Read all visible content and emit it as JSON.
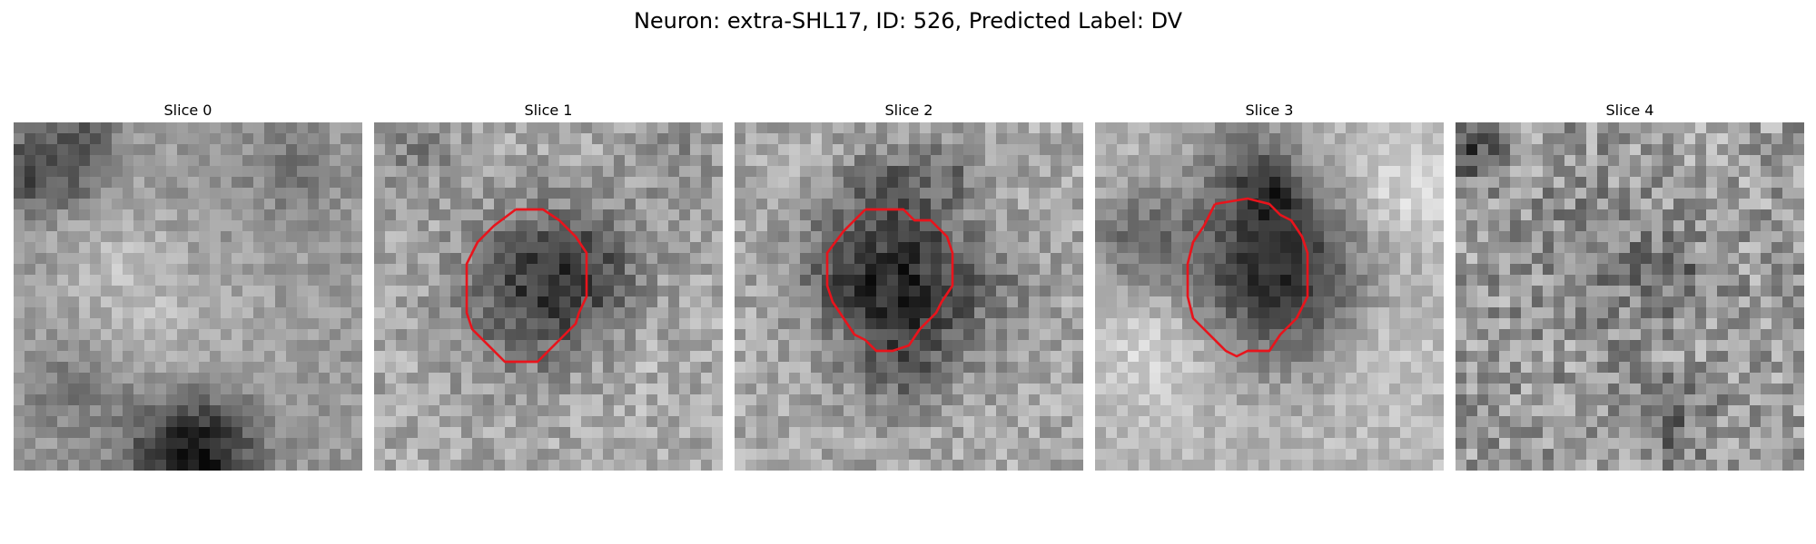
{
  "figure": {
    "title": "Neuron: extra-SHL17, ID: 526, Predicted Label: DV"
  },
  "panels": [
    {
      "title": "Slice 0",
      "has_contour": false
    },
    {
      "title": "Slice 1",
      "has_contour": true
    },
    {
      "title": "Slice 2",
      "has_contour": true
    },
    {
      "title": "Slice 3",
      "has_contour": true
    },
    {
      "title": "Slice 4",
      "has_contour": false
    }
  ],
  "colors": {
    "contour": "#e8141c",
    "background": "#ffffff"
  },
  "image": {
    "colormap": "gray",
    "grid": "32x32"
  }
}
